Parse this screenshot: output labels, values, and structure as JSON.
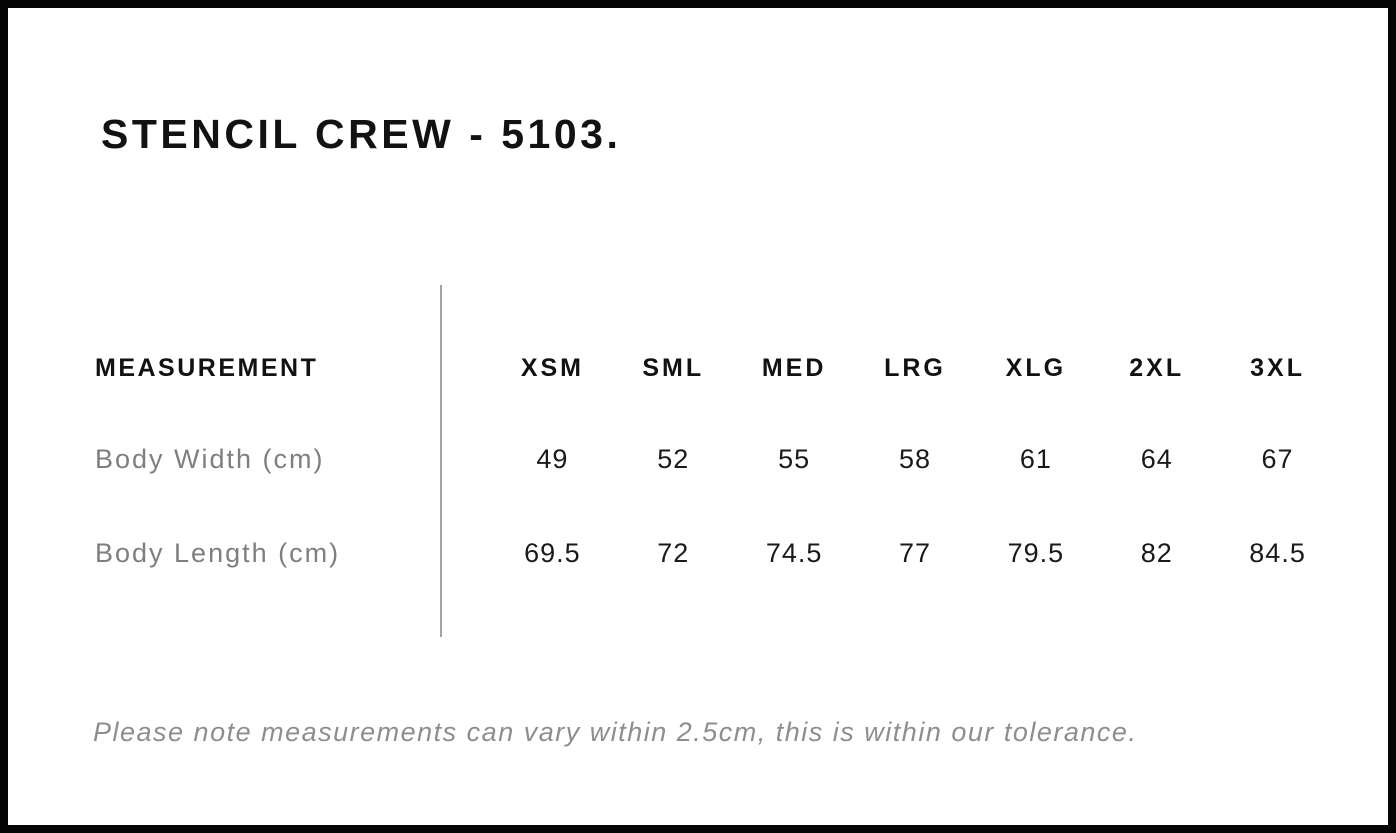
{
  "page": {
    "title": "STENCIL CREW - 5103.",
    "footnote": "Please note measurements can vary within 2.5cm, this is within our tolerance."
  },
  "size_chart": {
    "header_label": "MEASUREMENT",
    "sizes": [
      "XSM",
      "SML",
      "MED",
      "LRG",
      "XLG",
      "2XL",
      "3XL"
    ],
    "rows": [
      {
        "label": "Body Width (cm)",
        "values": [
          "49",
          "52",
          "55",
          "58",
          "61",
          "64",
          "67"
        ]
      },
      {
        "label": "Body Length (cm)",
        "values": [
          "69.5",
          "72",
          "74.5",
          "77",
          "79.5",
          "82",
          "84.5"
        ]
      }
    ]
  },
  "colors": {
    "frame": "#050505",
    "background": "#ffffff",
    "text_primary": "#121212",
    "text_muted": "#7f7f7f",
    "footnote_text": "#8e8e8e",
    "divider": "#a3a3a3"
  }
}
